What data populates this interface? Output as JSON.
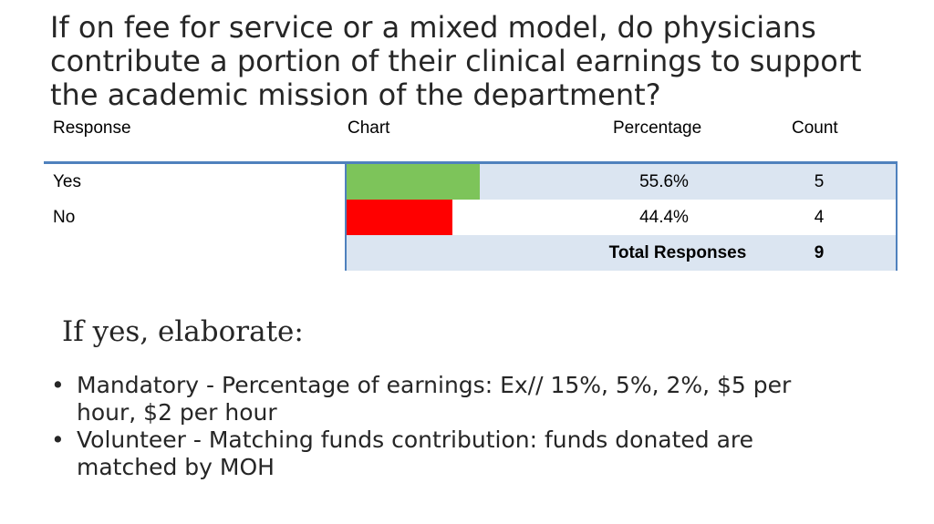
{
  "title": "If on fee for service or a mixed model, do physicians contribute a portion of their clinical earnings to support the academic mission of the department?",
  "headers": {
    "response": "Response",
    "chart": "Chart",
    "percentage": "Percentage",
    "count": "Count"
  },
  "colors": {
    "yes_bar": "#7dc45a",
    "no_bar": "#ff0000",
    "row_shade": "#dbe5f1",
    "rule": "#4f81bd"
  },
  "chart_data": {
    "type": "bar",
    "categories": [
      "Yes",
      "No"
    ],
    "values": [
      55.6,
      44.4
    ],
    "percent_labels": [
      "55.6%",
      "44.4%"
    ],
    "counts": [
      "5",
      "4"
    ],
    "total_label": "Total Responses",
    "total_count": "9"
  },
  "subheading": "If yes, elaborate:",
  "bullets": [
    "Mandatory - Percentage of earnings: Ex// 15%, 5%, 2%, $5 per hour, $2 per hour",
    "Volunteer - Matching funds contribution: funds donated are matched by MOH"
  ],
  "bullet_glyph": "•"
}
